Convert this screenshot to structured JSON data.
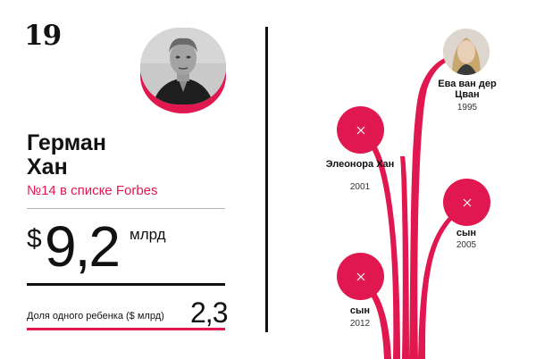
{
  "rank": "19",
  "person": {
    "name_line1": "Герман",
    "name_line2": "Хан",
    "forbes_rank": "№14 в списке Forbes"
  },
  "wealth": {
    "currency": "$",
    "amount": "9,2",
    "unit": "млрд"
  },
  "share": {
    "label": "Доля одного ребенка ($ млрд)",
    "value": "2,3"
  },
  "family": [
    {
      "label": "Ева ван дер Цван",
      "year": "1995"
    },
    {
      "label": "Элеонора Хан",
      "year": "2001"
    },
    {
      "label": "сын",
      "year": "2005"
    },
    {
      "label": "сын",
      "year": "2012"
    }
  ],
  "colors": {
    "accent": "#e0184f",
    "text": "#111111"
  }
}
